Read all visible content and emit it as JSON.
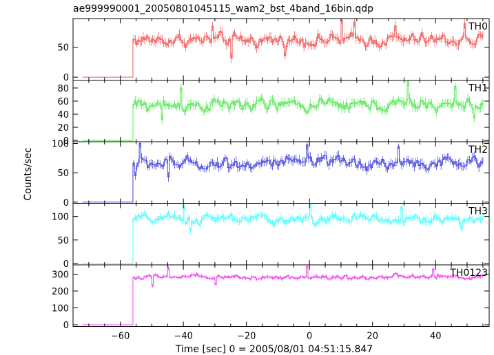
{
  "chart_data": {
    "type": "line",
    "title": "ae999990001_20050801045115_wam2_bst_4band_16bin.qdp",
    "xlabel": "Time [sec] 0 = 2005/08/01 04:51:15.847",
    "ylabel": "Counts/sec",
    "xlim": [
      -75,
      57
    ],
    "x_ticks": [
      -60,
      -40,
      -20,
      0,
      20,
      40
    ],
    "x_tick_labels": [
      "−60",
      "−40",
      "−20",
      "0",
      "20",
      "40"
    ],
    "step_time": -56,
    "x_start": -72,
    "x_end": 55,
    "bin_width": 0.5,
    "grid": false,
    "panels": [
      {
        "name": "TH0",
        "color": "#f25555",
        "ylim": [
          -5,
          98
        ],
        "yticks": [
          0,
          50
        ],
        "pre_level": 0,
        "mean": 62,
        "noise": 10,
        "highlight_times": [
          -31,
          10,
          14,
          27,
          49
        ],
        "highlight_values": [
          85,
          95,
          92,
          86,
          90
        ],
        "dip_times": [
          -25,
          -8
        ],
        "dip_values": [
          32,
          36
        ]
      },
      {
        "name": "TH1",
        "color": "#55e855",
        "ylim": [
          -2,
          92
        ],
        "yticks": [
          0,
          20,
          40,
          60,
          80
        ],
        "pre_level": 0,
        "mean": 54,
        "noise": 9,
        "highlight_times": [
          -41,
          31,
          46
        ],
        "highlight_values": [
          80,
          90,
          83
        ],
        "dip_times": [
          -47,
          52
        ],
        "dip_values": [
          32,
          34
        ]
      },
      {
        "name": "TH2",
        "color": "#4444dd",
        "ylim": [
          -2,
          103
        ],
        "yticks": [
          0,
          50,
          100
        ],
        "pre_level": 0,
        "mean": 66,
        "noise": 10,
        "highlight_times": [
          -54,
          -1,
          28
        ],
        "highlight_values": [
          100,
          98,
          95
        ],
        "dip_times": [
          -55.5,
          -45
        ],
        "dip_values": [
          45,
          43
        ]
      },
      {
        "name": "TH3",
        "color": "#44ffff",
        "ylim": [
          -3,
          128
        ],
        "yticks": [
          0,
          50,
          100
        ],
        "pre_level": 0,
        "mean": 94,
        "noise": 10,
        "highlight_times": [
          -40,
          0,
          29
        ],
        "highlight_values": [
          120,
          125,
          120
        ],
        "dip_times": [
          -38,
          48
        ],
        "dip_values": [
          70,
          73
        ]
      },
      {
        "name": "TH0123",
        "color": "#ee44ee",
        "ylim": [
          -10,
          355
        ],
        "yticks": [
          0,
          100,
          200,
          300
        ],
        "pre_level": 0,
        "mean": 282,
        "noise": 14,
        "highlight_times": [
          -45,
          -1,
          39
        ],
        "highlight_values": [
          335,
          345,
          330
        ],
        "dip_times": [
          -50,
          -30
        ],
        "dip_values": [
          230,
          240
        ]
      }
    ]
  }
}
